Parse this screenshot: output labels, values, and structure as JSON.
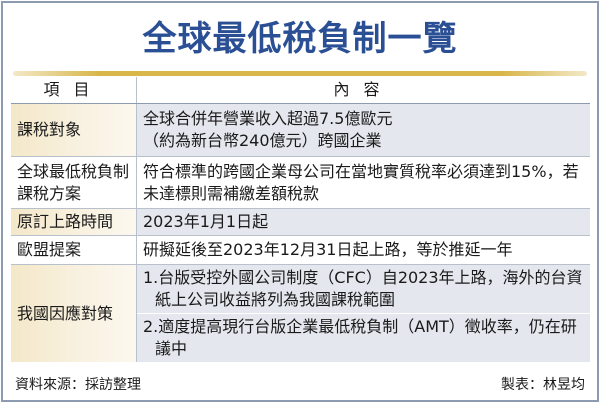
{
  "title": "全球最低稅負制一覽",
  "header": {
    "item": "項目",
    "content": "內容"
  },
  "rows": [
    {
      "item": "課稅對象",
      "content": [
        "全球合併年營業收入超過7.5億歐元",
        "（約為新台幣240億元）跨國企業"
      ]
    },
    {
      "item": "全球最低稅負制課稅方案",
      "content": [
        "符合標準的跨國企業母公司在當地實質稅率必須達到15%，若未達標則需補繳差額稅款"
      ]
    },
    {
      "item": "原訂上路時間",
      "content": [
        "2023年1月1日起"
      ]
    },
    {
      "item": "歐盟提案",
      "content": [
        "研擬延後至2023年12月31日起上路，等於推延一年"
      ]
    },
    {
      "item": "我國因應對策",
      "content": [
        "1.台版受控外國公司制度（CFC）自2023年上路，海外的台資紙上公司收益將列為我國課稅範圍",
        "2.適度提高現行台版企業最低稅負制（AMT）徵收率，仍在研議中"
      ]
    }
  ],
  "footer": {
    "source": "資料來源：採訪整理",
    "author": "製表：林昱均"
  },
  "colors": {
    "title": "#2b4f94",
    "accent_gold": "#d8b64a",
    "row_shade": "#e4e7ee"
  }
}
